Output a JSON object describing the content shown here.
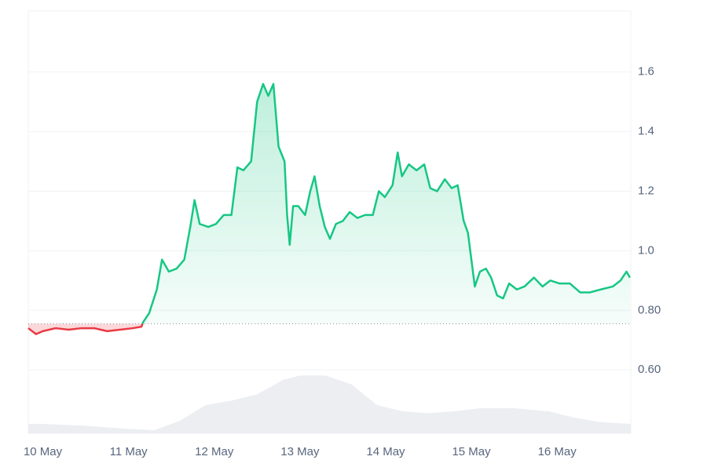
{
  "chart_data": {
    "type": "line",
    "xlim": [
      -0.17,
      6.86
    ],
    "xticks": [
      {
        "value": 0,
        "label": "10 May"
      },
      {
        "value": 1,
        "label": "11 May"
      },
      {
        "value": 2,
        "label": "12 May"
      },
      {
        "value": 3,
        "label": "13 May"
      },
      {
        "value": 4,
        "label": "14 May"
      },
      {
        "value": 5,
        "label": "15 May"
      },
      {
        "value": 6,
        "label": "16 May"
      }
    ],
    "ylim": [
      0.387,
      1.805
    ],
    "yticks": [
      {
        "value": 0.6,
        "label": "0.60"
      },
      {
        "value": 0.8,
        "label": "0.80"
      },
      {
        "value": 1,
        "label": "1.0"
      },
      1.2,
      1.4,
      1.6
    ],
    "y2lim": [
      0,
      100
    ],
    "grid": true,
    "baseline": 0.755,
    "series": [
      {
        "color": "#16c784",
        "down_color": "#ea3943",
        "x": [
          -0.17,
          -0.08,
          0,
          0.15,
          0.3,
          0.45,
          0.6,
          0.75,
          0.9,
          1.05,
          1.15,
          1.17,
          1.24,
          1.33,
          1.39,
          1.47,
          1.56,
          1.65,
          1.72,
          1.77,
          1.83,
          1.93,
          2.02,
          2.11,
          2.2,
          2.27,
          2.34,
          2.43,
          2.5,
          2.57,
          2.63,
          2.69,
          2.75,
          2.82,
          2.85,
          2.88,
          2.92,
          2.98,
          3.06,
          3.12,
          3.17,
          3.23,
          3.29,
          3.35,
          3.42,
          3.5,
          3.58,
          3.67,
          3.76,
          3.85,
          3.92,
          3.99,
          4.08,
          4.14,
          4.19,
          4.27,
          4.36,
          4.45,
          4.52,
          4.6,
          4.69,
          4.77,
          4.84,
          4.91,
          4.96,
          5.0,
          5.04,
          5.1,
          5.17,
          5.23,
          5.3,
          5.37,
          5.44,
          5.53,
          5.62,
          5.73,
          5.83,
          5.92,
          6.03,
          6.15,
          6.27,
          6.38,
          6.51,
          6.65,
          6.74,
          6.81,
          6.85
        ],
        "values": [
          0.74,
          0.72,
          0.73,
          0.74,
          0.735,
          0.74,
          0.74,
          0.73,
          0.735,
          0.74,
          0.745,
          0.76,
          0.79,
          0.87,
          0.97,
          0.93,
          0.94,
          0.97,
          1.08,
          1.17,
          1.09,
          1.08,
          1.09,
          1.12,
          1.12,
          1.28,
          1.27,
          1.3,
          1.5,
          1.56,
          1.52,
          1.56,
          1.35,
          1.3,
          1.12,
          1.02,
          1.15,
          1.15,
          1.12,
          1.2,
          1.25,
          1.15,
          1.08,
          1.04,
          1.09,
          1.1,
          1.13,
          1.11,
          1.12,
          1.12,
          1.2,
          1.18,
          1.22,
          1.33,
          1.25,
          1.29,
          1.27,
          1.29,
          1.21,
          1.2,
          1.24,
          1.21,
          1.22,
          1.1,
          1.06,
          0.97,
          0.88,
          0.93,
          0.94,
          0.91,
          0.85,
          0.84,
          0.89,
          0.87,
          0.88,
          0.91,
          0.88,
          0.9,
          0.89,
          0.89,
          0.86,
          0.86,
          0.87,
          0.88,
          0.9,
          0.93,
          0.91
        ]
      },
      {
        "axis": "y2",
        "color": "#eceef2",
        "x": [
          -0.17,
          0,
          0.5,
          1,
          1.3,
          1.6,
          1.9,
          2.2,
          2.5,
          2.8,
          3.0,
          3.3,
          3.6,
          3.9,
          4.2,
          4.5,
          4.8,
          5.1,
          5.5,
          5.9,
          6.2,
          6.5,
          6.86
        ],
        "values": [
          15,
          15,
          12,
          7,
          5,
          20,
          45,
          52,
          62,
          85,
          92,
          92,
          78,
          45,
          35,
          32,
          35,
          40,
          40,
          35,
          25,
          18,
          15
        ]
      }
    ]
  }
}
